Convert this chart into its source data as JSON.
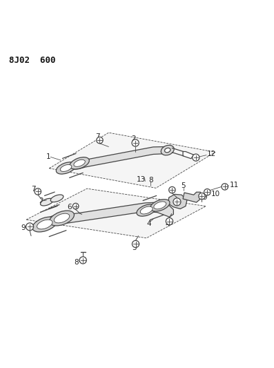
{
  "title": "8J02  600",
  "bg_color": "#ffffff",
  "line_color": "#444444",
  "title_fontsize": 9,
  "label_fontsize": 7.5,
  "figsize": [
    3.97,
    5.33
  ],
  "dpi": 100
}
